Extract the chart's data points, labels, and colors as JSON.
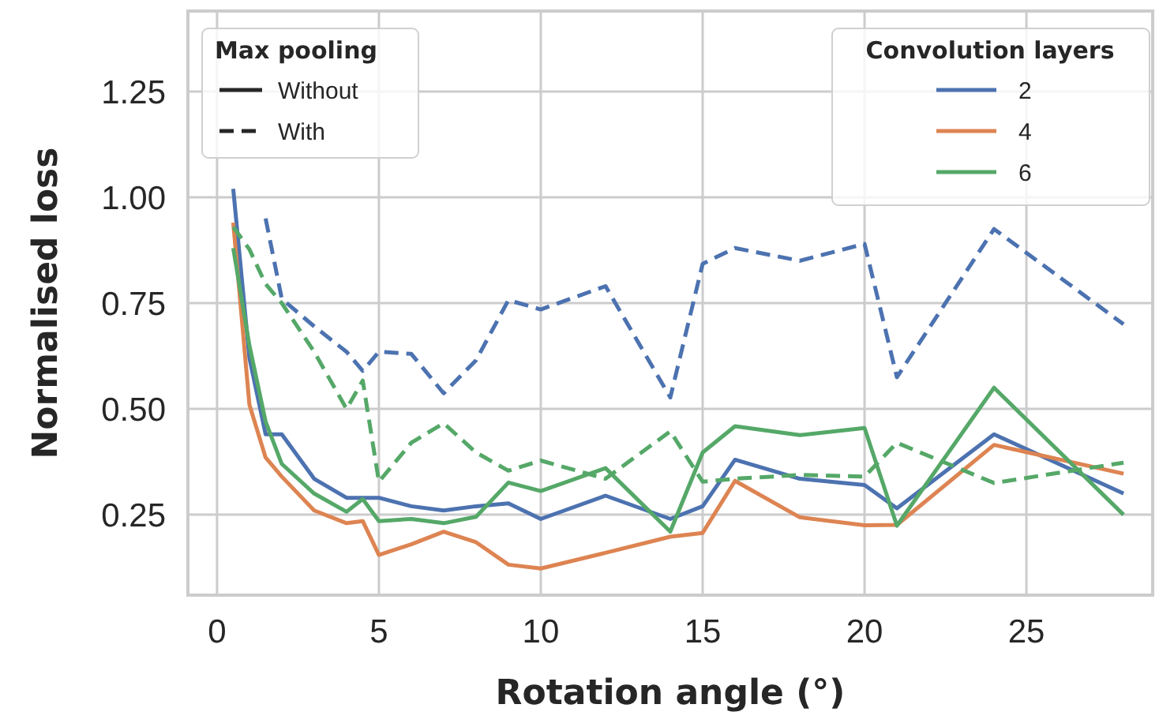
{
  "chart_data": {
    "type": "line",
    "xlabel": "Rotation angle (°)",
    "ylabel": "Normalised loss",
    "x": [
      0.5,
      1,
      1.5,
      2,
      3,
      4,
      4.5,
      5,
      6,
      7,
      8,
      9,
      10,
      12,
      14,
      15,
      16,
      18,
      20,
      21,
      24,
      28
    ],
    "series": [
      {
        "name": "2",
        "color": "#4c72b0",
        "line_style": "solid",
        "values": [
          1.02,
          0.62,
          0.44,
          0.44,
          0.335,
          0.29,
          0.29,
          0.29,
          0.27,
          0.26,
          0.27,
          0.277,
          0.24,
          0.295,
          0.24,
          0.27,
          0.38,
          0.335,
          0.32,
          0.265,
          0.44,
          0.3
        ]
      },
      {
        "name": "4",
        "color": "#dd8452",
        "line_style": "solid",
        "values": [
          0.94,
          0.51,
          0.385,
          0.34,
          0.26,
          0.23,
          0.235,
          0.155,
          0.18,
          0.21,
          0.185,
          0.132,
          0.123,
          0.16,
          0.198,
          0.207,
          0.33,
          0.244,
          0.225,
          0.226,
          0.415,
          0.347
        ]
      },
      {
        "name": "6",
        "color": "#55a868",
        "line_style": "solid",
        "values": [
          0.88,
          0.65,
          0.47,
          0.37,
          0.3,
          0.257,
          0.287,
          0.235,
          0.24,
          0.23,
          0.245,
          0.326,
          0.306,
          0.36,
          0.21,
          0.397,
          0.459,
          0.438,
          0.455,
          0.224,
          0.55,
          0.25
        ]
      },
      {
        "color": "#4c72b0",
        "line_style": "dashed",
        "values": [
          null,
          null,
          0.95,
          0.76,
          0.695,
          0.635,
          0.59,
          0.635,
          0.63,
          0.537,
          0.615,
          0.757,
          0.735,
          0.79,
          0.527,
          0.843,
          0.88,
          0.85,
          0.89,
          0.575,
          0.925,
          0.7
        ]
      },
      {
        "color": "#55a868",
        "line_style": "dashed",
        "values": [
          0.93,
          0.877,
          0.795,
          0.75,
          0.635,
          0.5,
          0.567,
          0.328,
          0.42,
          0.466,
          0.397,
          0.354,
          0.378,
          0.335,
          0.447,
          0.328,
          0.335,
          0.344,
          0.34,
          0.42,
          0.325,
          0.373
        ]
      }
    ],
    "xlim": [
      -0.9,
      28.9
    ],
    "xticks": [
      0,
      5,
      10,
      15,
      20,
      25
    ],
    "ylim": [
      0.06,
      1.44
    ],
    "yticks": [
      0.25,
      {
        "value": 0.5,
        "label": "0.50"
      },
      0.75,
      {
        "value": 1,
        "label": "1.00"
      },
      1.25
    ],
    "grid": true,
    "legend": "top right",
    "legend_title": "Convolution layers",
    "annotations": [
      "Max pooling",
      "Without",
      "With"
    ]
  }
}
